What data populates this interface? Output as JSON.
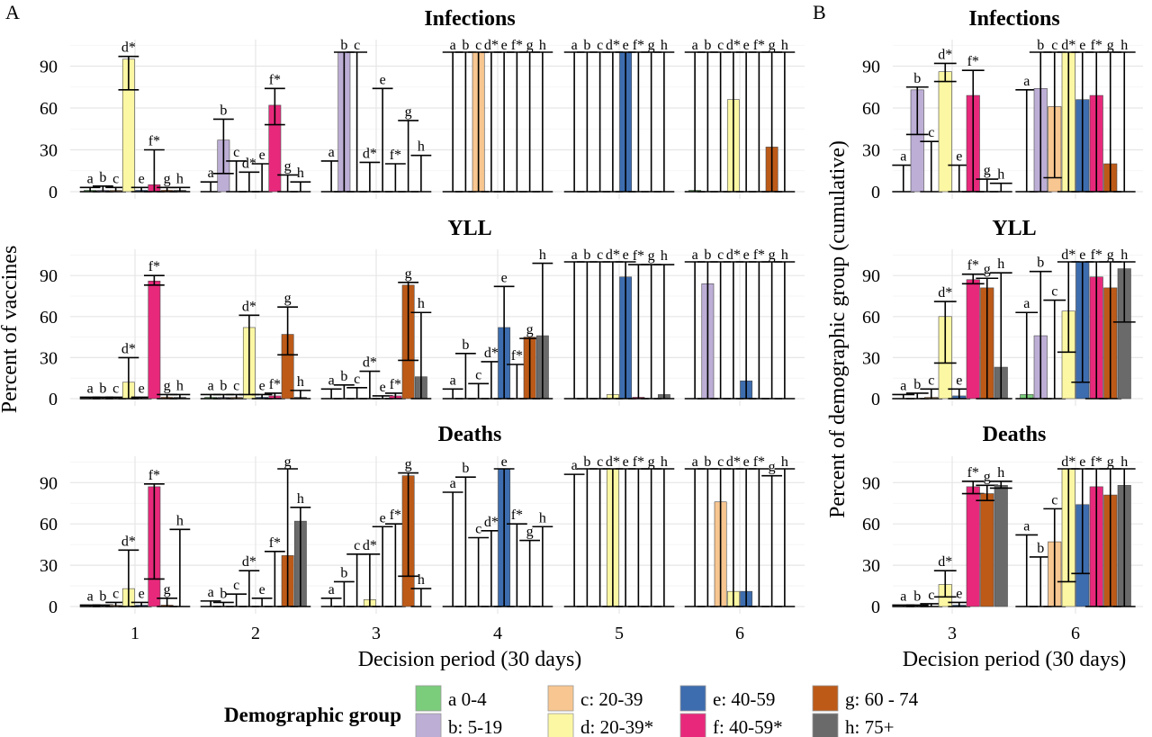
{
  "panel_labels": [
    "A",
    "B"
  ],
  "legend": {
    "title": "Demographic group",
    "items": [
      {
        "key": "a",
        "label": "a 0-4",
        "color": "#7bcc7b"
      },
      {
        "key": "b",
        "label": "b: 5-19",
        "color": "#bdaed6"
      },
      {
        "key": "c",
        "label": "c: 20-39",
        "color": "#f8c690"
      },
      {
        "key": "d",
        "label": "d: 20-39*",
        "color": "#fcf7a3"
      },
      {
        "key": "e",
        "label": "e: 40-59",
        "color": "#3d6daf"
      },
      {
        "key": "f",
        "label": "f: 40-59*",
        "color": "#e8297b"
      },
      {
        "key": "g",
        "label": "g: 60 - 74",
        "color": "#bd5a18"
      },
      {
        "key": "h",
        "label": "h: 75+",
        "color": "#6a6a6a"
      }
    ]
  },
  "chart_data": [
    {
      "panel": "A",
      "type": "bar",
      "x": [
        1,
        2,
        3,
        4,
        5,
        6
      ],
      "xlabel": "Decision period (30 days)",
      "ylabel": "Percent of vaccines",
      "ylim": [
        0,
        100
      ],
      "yticks": [
        0,
        30,
        60,
        90
      ],
      "group_labels": [
        "a",
        "b",
        "c",
        "d*",
        "e",
        "f*",
        "g",
        "h"
      ],
      "rows": [
        {
          "title": "Infections",
          "periods": [
            {
              "x": 1,
              "values": [
                1,
                1,
                1,
                95,
                1,
                5,
                1,
                1
              ],
              "lo": [
                0,
                0,
                0,
                73,
                0,
                0,
                0,
                0
              ],
              "hi": [
                3,
                4,
                3,
                97,
                3,
                30,
                3,
                3
              ]
            },
            {
              "x": 2,
              "values": [
                0,
                37,
                0,
                0,
                0,
                62,
                0,
                0
              ],
              "lo": [
                0,
                13,
                0,
                0,
                0,
                48,
                0,
                0
              ],
              "hi": [
                7,
                52,
                22,
                14,
                20,
                74,
                12,
                7
              ]
            },
            {
              "x": 3,
              "values": [
                0,
                100,
                0,
                0,
                0,
                0,
                0,
                0
              ],
              "lo": [
                0,
                0,
                0,
                0,
                0,
                0,
                0,
                0
              ],
              "hi": [
                22,
                100,
                100,
                21,
                74,
                20,
                51,
                26
              ]
            },
            {
              "x": 4,
              "values": [
                0,
                0,
                100,
                0,
                0,
                0,
                0,
                0
              ],
              "lo": [
                0,
                0,
                0,
                0,
                0,
                0,
                0,
                0
              ],
              "hi": [
                100,
                100,
                100,
                100,
                100,
                100,
                100,
                100
              ]
            },
            {
              "x": 5,
              "values": [
                0,
                0,
                0,
                0,
                100,
                0,
                0,
                0
              ],
              "lo": [
                0,
                0,
                0,
                0,
                0,
                0,
                0,
                0
              ],
              "hi": [
                100,
                100,
                100,
                100,
                100,
                100,
                100,
                100
              ]
            },
            {
              "x": 6,
              "values": [
                1,
                0,
                0,
                66,
                0,
                0,
                32,
                0
              ],
              "lo": [
                0,
                0,
                0,
                0,
                0,
                0,
                0,
                0
              ],
              "hi": [
                100,
                100,
                100,
                100,
                100,
                100,
                100,
                100
              ]
            }
          ]
        },
        {
          "title": "YLL",
          "periods": [
            {
              "x": 1,
              "values": [
                0,
                0,
                0,
                12,
                0,
                86,
                1,
                1
              ],
              "lo": [
                0,
                0,
                0,
                0,
                0,
                83,
                0,
                0
              ],
              "hi": [
                1,
                1,
                1,
                30,
                1,
                90,
                3,
                3
              ]
            },
            {
              "x": 2,
              "values": [
                1,
                1,
                1,
                52,
                1,
                2,
                47,
                1
              ],
              "lo": [
                0,
                0,
                0,
                3,
                0,
                0,
                32,
                0
              ],
              "hi": [
                3,
                3,
                3,
                61,
                3,
                4,
                67,
                6
              ]
            },
            {
              "x": 3,
              "values": [
                0,
                0,
                0,
                0,
                0,
                2,
                83,
                16
              ],
              "lo": [
                0,
                0,
                0,
                0,
                0,
                0,
                28,
                0
              ],
              "hi": [
                7,
                10,
                8,
                20,
                2,
                4,
                85,
                63
              ]
            },
            {
              "x": 4,
              "values": [
                0,
                0,
                0,
                0,
                52,
                0,
                45,
                46
              ],
              "lo": [
                0,
                0,
                0,
                0,
                0,
                0,
                0,
                0
              ],
              "hi": [
                7,
                33,
                11,
                27,
                82,
                25,
                44,
                99
              ]
            },
            {
              "x": 5,
              "values": [
                0,
                0,
                0,
                3,
                89,
                1,
                0,
                3
              ],
              "lo": [
                0,
                0,
                0,
                0,
                0,
                0,
                0,
                0
              ],
              "hi": [
                100,
                100,
                100,
                100,
                100,
                98,
                98,
                98
              ]
            },
            {
              "x": 6,
              "values": [
                0,
                84,
                0,
                0,
                13,
                0,
                0,
                0
              ],
              "lo": [
                0,
                0,
                0,
                0,
                0,
                0,
                0,
                0
              ],
              "hi": [
                100,
                100,
                100,
                100,
                100,
                100,
                100,
                100
              ]
            }
          ]
        },
        {
          "title": "Deaths",
          "periods": [
            {
              "x": 1,
              "values": [
                0,
                0,
                1,
                13,
                1,
                87,
                1,
                0
              ],
              "lo": [
                0,
                0,
                0,
                0,
                0,
                20,
                0,
                0
              ],
              "hi": [
                1,
                1,
                3,
                41,
                3,
                89,
                6,
                56
              ]
            },
            {
              "x": 2,
              "values": [
                0,
                0,
                0,
                0,
                0,
                0,
                37,
                62
              ],
              "lo": [
                0,
                0,
                0,
                0,
                0,
                0,
                0,
                0
              ],
              "hi": [
                4,
                3,
                9,
                26,
                6,
                40,
                100,
                72
              ]
            },
            {
              "x": 3,
              "values": [
                0,
                0,
                0,
                5,
                0,
                0,
                95,
                0
              ],
              "lo": [
                0,
                0,
                0,
                0,
                0,
                0,
                22,
                0
              ],
              "hi": [
                6,
                18,
                38,
                38,
                58,
                60,
                97,
                13
              ]
            },
            {
              "x": 4,
              "values": [
                0,
                0,
                0,
                0,
                100,
                0,
                0,
                0
              ],
              "lo": [
                0,
                0,
                0,
                0,
                0,
                0,
                0,
                0
              ],
              "hi": [
                83,
                94,
                50,
                55,
                100,
                60,
                48,
                58
              ]
            },
            {
              "x": 5,
              "values": [
                0,
                0,
                0,
                100,
                0,
                0,
                0,
                0
              ],
              "lo": [
                0,
                0,
                0,
                0,
                0,
                0,
                0,
                0
              ],
              "hi": [
                96,
                100,
                100,
                100,
                100,
                100,
                100,
                100
              ]
            },
            {
              "x": 6,
              "values": [
                0,
                0,
                76,
                11,
                11,
                0,
                0,
                0
              ],
              "lo": [
                0,
                0,
                0,
                0,
                0,
                0,
                0,
                0
              ],
              "hi": [
                100,
                100,
                100,
                100,
                100,
                100,
                95,
                100
              ]
            }
          ]
        }
      ]
    },
    {
      "panel": "B",
      "type": "bar",
      "x": [
        3,
        6
      ],
      "xlabel": "Decision period (30 days)",
      "ylabel": "Percent of demographic group (cumulative)",
      "ylim": [
        0,
        100
      ],
      "yticks": [
        0,
        30,
        60,
        90
      ],
      "group_labels": [
        "a",
        "b",
        "c",
        "d*",
        "e",
        "f*",
        "g",
        "h"
      ],
      "rows": [
        {
          "title": "Infections",
          "periods": [
            {
              "x": 3,
              "values": [
                0,
                73,
                0,
                86,
                0,
                69,
                0,
                0
              ],
              "lo": [
                0,
                41,
                0,
                79,
                0,
                0,
                0,
                0
              ],
              "hi": [
                19,
                75,
                36,
                92,
                19,
                87,
                9,
                6
              ]
            },
            {
              "x": 6,
              "values": [
                0,
                74,
                61,
                100,
                66,
                69,
                20,
                0
              ],
              "lo": [
                0,
                0,
                10,
                0,
                0,
                0,
                0,
                0
              ],
              "hi": [
                73,
                100,
                100,
                100,
                100,
                100,
                100,
                100
              ]
            }
          ]
        },
        {
          "title": "YLL",
          "periods": [
            {
              "x": 3,
              "values": [
                0,
                0,
                1,
                60,
                2,
                87,
                81,
                23
              ],
              "lo": [
                0,
                0,
                0,
                26,
                0,
                84,
                0,
                0
              ],
              "hi": [
                3,
                4,
                7,
                71,
                7,
                91,
                88,
                92
              ]
            },
            {
              "x": 6,
              "values": [
                3,
                46,
                0,
                64,
                100,
                89,
                81,
                95
              ],
              "lo": [
                0,
                0,
                0,
                34,
                12,
                0,
                0,
                56
              ],
              "hi": [
                63,
                93,
                72,
                100,
                100,
                100,
                100,
                100
              ]
            }
          ]
        },
        {
          "title": "Deaths",
          "periods": [
            {
              "x": 3,
              "values": [
                0,
                0,
                0,
                16,
                1,
                87,
                82,
                88
              ],
              "lo": [
                0,
                0,
                0,
                7,
                0,
                82,
                77,
                86
              ],
              "hi": [
                1,
                1,
                2,
                26,
                3,
                91,
                88,
                91
              ]
            },
            {
              "x": 6,
              "values": [
                0,
                0,
                47,
                100,
                74,
                87,
                81,
                88
              ],
              "lo": [
                0,
                0,
                0,
                18,
                24,
                0,
                0,
                0
              ],
              "hi": [
                52,
                36,
                71,
                100,
                100,
                100,
                100,
                100
              ]
            }
          ]
        }
      ]
    }
  ]
}
